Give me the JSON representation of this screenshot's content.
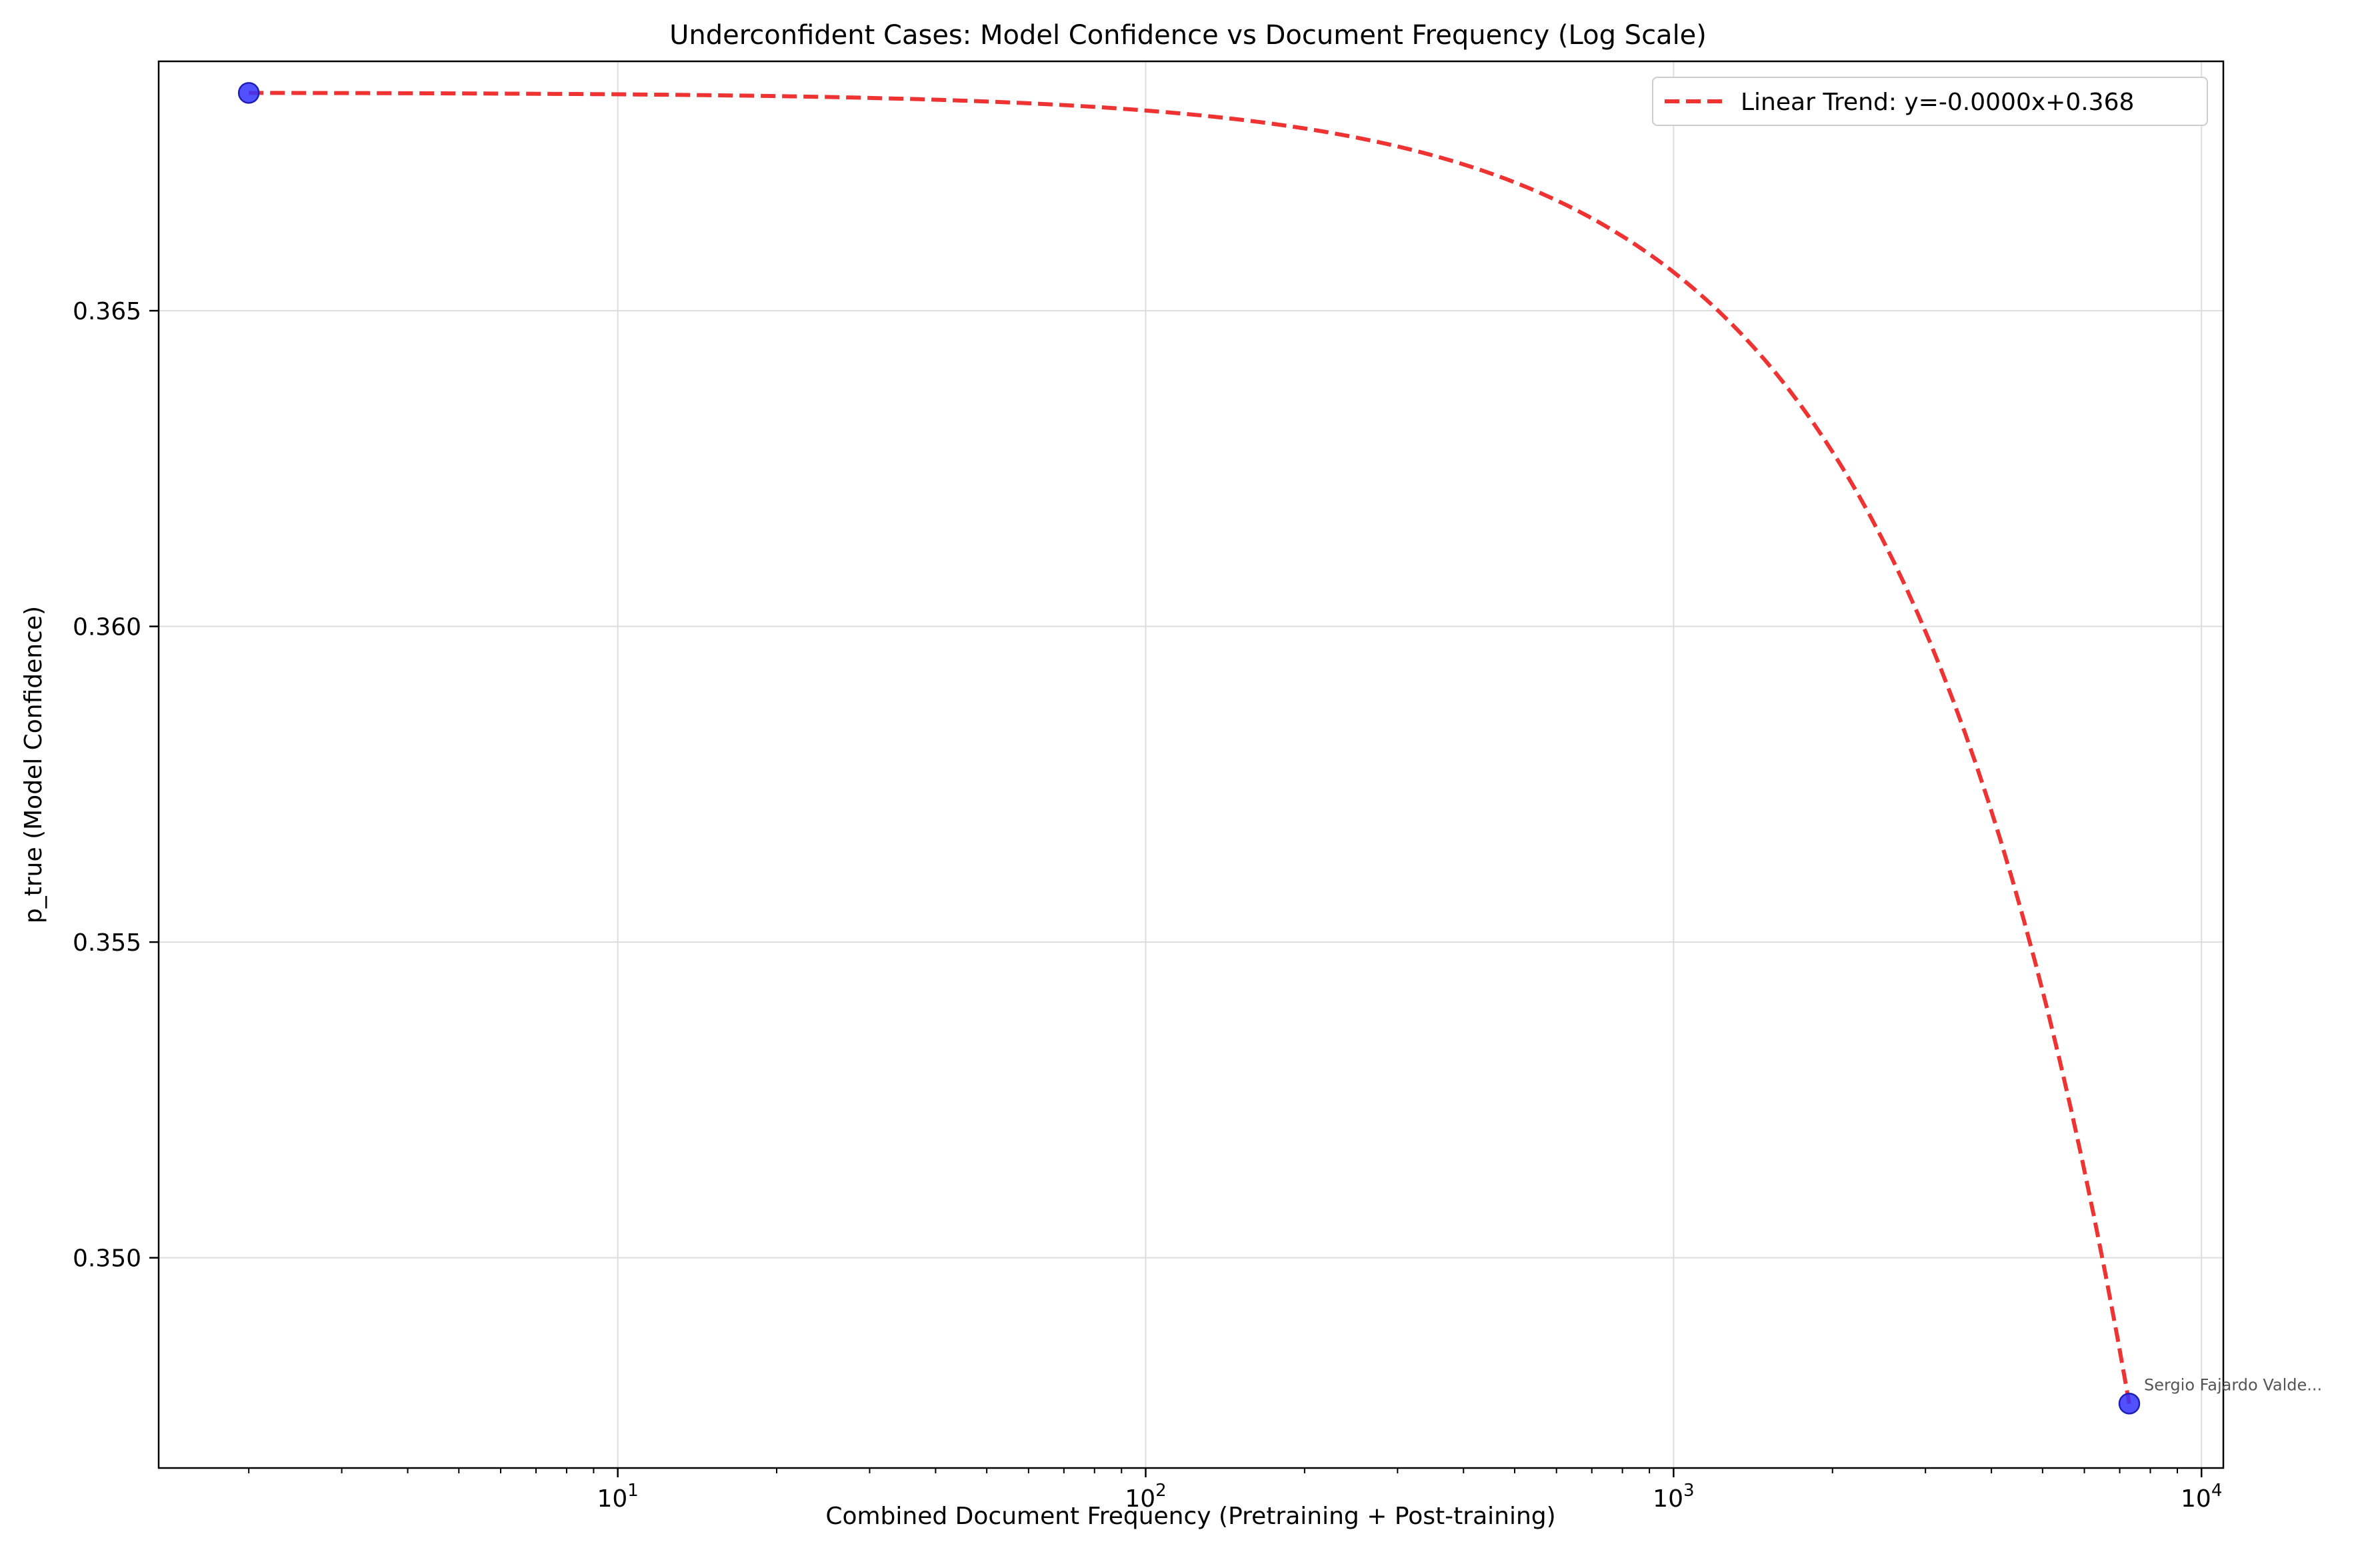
{
  "chart_data": {
    "type": "scatter",
    "title": "Underconfident Cases: Model Confidence vs Document Frequency (Log Scale)",
    "xlabel": "Combined Document Frequency (Pretraining + Post-training)",
    "ylabel": "p_true (Model Confidence)",
    "xscale": "log",
    "xlim": [
      1.35,
      11000
    ],
    "ylim": [
      0.34667,
      0.36895
    ],
    "grid": true,
    "legend_position": "top-right",
    "x_ticks": [
      {
        "value": 10,
        "base": "10",
        "exp": "1"
      },
      {
        "value": 100,
        "base": "10",
        "exp": "2"
      },
      {
        "value": 1000,
        "base": "10",
        "exp": "3"
      },
      {
        "value": 10000,
        "base": "10",
        "exp": "4"
      }
    ],
    "y_ticks": [
      {
        "value": 0.35,
        "label": "0.350"
      },
      {
        "value": 0.355,
        "label": "0.355"
      },
      {
        "value": 0.36,
        "label": "0.360"
      },
      {
        "value": 0.365,
        "label": "0.365"
      }
    ],
    "points": [
      {
        "x": 2,
        "y": 0.36845,
        "label": ""
      },
      {
        "x": 7300,
        "y": 0.34769,
        "label": "Sergio Fajardo Valde..."
      }
    ],
    "trend": {
      "name": "Linear Trend: y=-0.0000x+0.368",
      "slope": -2.845e-06,
      "intercept": 0.368456,
      "x_start": 2,
      "x_end": 7300
    },
    "colors": {
      "point_fill": "#3333ff",
      "point_edge": "#1f1fb5",
      "trend": "#ee2222",
      "grid": "#dddddd",
      "annotation": "#555555"
    }
  }
}
